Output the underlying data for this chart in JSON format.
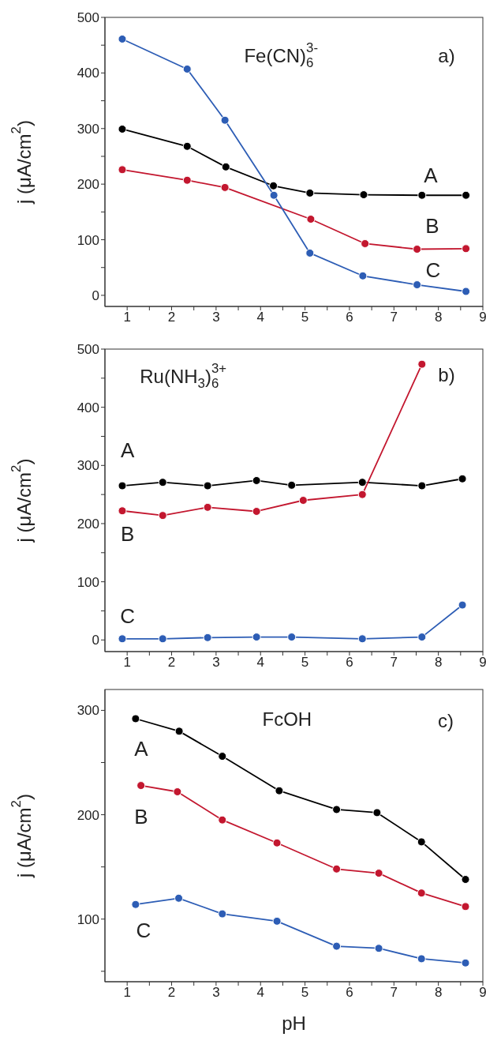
{
  "chart_data": [
    {
      "type": "line",
      "xlim": [
        0.5,
        9
      ],
      "xticks": [
        1,
        {
          "value": 1.5,
          "label": null
        },
        2,
        {
          "value": 2.5,
          "label": null
        },
        3,
        {
          "value": 3.5,
          "label": null
        },
        4,
        {
          "value": 4.5,
          "label": null
        },
        5,
        {
          "value": 5.5,
          "label": null
        },
        6,
        {
          "value": 6.5,
          "label": null
        },
        7,
        {
          "value": 7.5,
          "label": null
        },
        8,
        {
          "value": 8.5,
          "label": null
        },
        9
      ],
      "ylim": [
        -20,
        500
      ],
      "yticks": [
        0,
        {
          "value": 50,
          "label": null
        },
        100,
        {
          "value": 150,
          "label": null
        },
        200,
        {
          "value": 250,
          "label": null
        },
        300,
        {
          "value": 350,
          "label": null
        },
        400,
        {
          "value": 450,
          "label": null
        },
        500
      ],
      "ylabel": "j (μA/cm$^{2}$)",
      "marker": "circle",
      "line_style": "solid",
      "series": [
        {
          "name": "A",
          "color": "#000000",
          "x": [
            0.89,
            2.35,
            3.22,
            4.29,
            5.11,
            6.32,
            7.63,
            8.62
          ],
          "values": [
            299,
            268,
            231,
            197,
            184,
            181,
            180,
            180
          ]
        },
        {
          "name": "B",
          "color": "#c3172f",
          "x": [
            0.89,
            2.35,
            3.2,
            5.13,
            6.35,
            7.52,
            8.62
          ],
          "values": [
            226,
            207,
            194,
            137,
            93,
            83,
            84
          ]
        },
        {
          "name": "C",
          "color": "#2d5db5",
          "x": [
            0.89,
            2.35,
            3.2,
            4.3,
            5.11,
            6.3,
            7.52,
            8.62
          ],
          "values": [
            461,
            407,
            315,
            180,
            76,
            35,
            19,
            7
          ]
        }
      ],
      "annotations": [
        "Fe(CN)$_{6}$$^{3-}$",
        "a)"
      ]
    },
    {
      "type": "line",
      "xlim": [
        0.5,
        9
      ],
      "xticks": [
        1,
        {
          "value": 1.5,
          "label": null
        },
        2,
        {
          "value": 2.5,
          "label": null
        },
        3,
        {
          "value": 3.5,
          "label": null
        },
        4,
        {
          "value": 4.5,
          "label": null
        },
        5,
        {
          "value": 5.5,
          "label": null
        },
        6,
        {
          "value": 6.5,
          "label": null
        },
        7,
        {
          "value": 7.5,
          "label": null
        },
        8,
        {
          "value": 8.5,
          "label": null
        },
        9
      ],
      "ylim": [
        -20,
        500
      ],
      "yticks": [
        0,
        {
          "value": 50,
          "label": null
        },
        100,
        {
          "value": 150,
          "label": null
        },
        200,
        {
          "value": 250,
          "label": null
        },
        300,
        {
          "value": 350,
          "label": null
        },
        400,
        {
          "value": 450,
          "label": null
        },
        500
      ],
      "ylabel": "j (μA/cm$^{2}$)",
      "marker": "circle",
      "line_style": "solid",
      "series": [
        {
          "name": "A",
          "color": "#000000",
          "x": [
            0.89,
            1.8,
            2.81,
            3.91,
            4.7,
            6.29,
            7.63,
            8.54
          ],
          "values": [
            265,
            271,
            265,
            274,
            266,
            271,
            265,
            277
          ]
        },
        {
          "name": "B",
          "color": "#c3172f",
          "x": [
            0.89,
            1.8,
            2.81,
            3.91,
            4.96,
            6.29,
            7.63
          ],
          "values": [
            222,
            214,
            228,
            221,
            240,
            250,
            474
          ]
        },
        {
          "name": "C",
          "color": "#2d5db5",
          "x": [
            0.89,
            1.8,
            2.81,
            3.91,
            4.7,
            6.29,
            7.63,
            8.54
          ],
          "values": [
            2,
            2,
            4,
            5,
            5,
            2,
            5,
            60
          ]
        }
      ],
      "annotations": [
        "Ru(NH$_{3}$)$_{6}$$^{3+}$",
        "b)"
      ]
    },
    {
      "type": "line",
      "xlim": [
        0.5,
        9
      ],
      "xticks": [
        1,
        {
          "value": 1.5,
          "label": null
        },
        2,
        {
          "value": 2.5,
          "label": null
        },
        3,
        {
          "value": 3.5,
          "label": null
        },
        4,
        {
          "value": 4.5,
          "label": null
        },
        5,
        {
          "value": 5.5,
          "label": null
        },
        6,
        {
          "value": 6.5,
          "label": null
        },
        7,
        {
          "value": 7.5,
          "label": null
        },
        8,
        {
          "value": 8.5,
          "label": null
        },
        9
      ],
      "ylim": [
        40,
        320
      ],
      "yticks": [
        {
          "value": 50,
          "label": null
        },
        100,
        {
          "value": 150,
          "label": null
        },
        200,
        {
          "value": 250,
          "label": null
        },
        300
      ],
      "xlabel": "pH",
      "ylabel": "j (μA/cm$^{2}$)",
      "marker": "circle",
      "line_style": "solid",
      "series": [
        {
          "name": "A",
          "color": "#000000",
          "x": [
            1.19,
            2.17,
            3.14,
            4.42,
            5.71,
            6.62,
            7.62,
            8.61
          ],
          "values": [
            292,
            280,
            256,
            223,
            205,
            202,
            174,
            138
          ]
        },
        {
          "name": "B",
          "color": "#c3172f",
          "x": [
            1.31,
            2.13,
            3.14,
            4.37,
            5.71,
            6.66,
            7.62,
            8.61
          ],
          "values": [
            228,
            222,
            195,
            173,
            148,
            144,
            125,
            112
          ]
        },
        {
          "name": "C",
          "color": "#2d5db5",
          "x": [
            1.19,
            2.16,
            3.14,
            4.37,
            5.71,
            6.66,
            7.62,
            8.61
          ],
          "values": [
            114,
            120,
            105,
            98,
            74,
            72,
            62,
            58
          ]
        }
      ],
      "annotations": [
        "FcOH",
        "c)"
      ]
    }
  ]
}
